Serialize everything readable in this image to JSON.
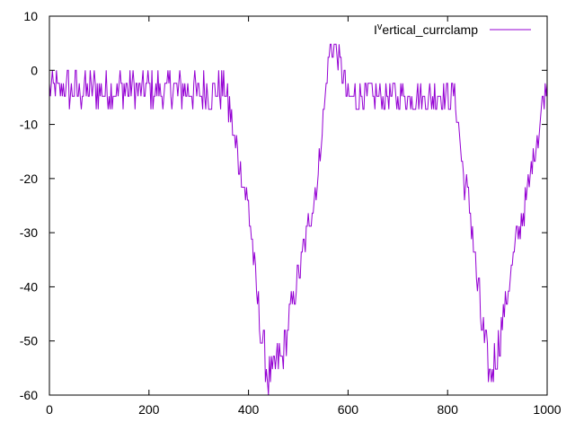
{
  "chart_data": {
    "type": "line",
    "title": "",
    "xlabel": "",
    "ylabel": "",
    "xlim": [
      0,
      1000
    ],
    "ylim": [
      -60,
      10
    ],
    "x_ticks": [
      0,
      200,
      400,
      600,
      800,
      1000
    ],
    "y_ticks": [
      10,
      0,
      -10,
      -20,
      -30,
      -40,
      -50,
      -60
    ],
    "x_tick_labels": [
      "0",
      "200",
      "400",
      "600",
      "800",
      "1000"
    ],
    "y_tick_labels": [
      "10",
      "0",
      "-10",
      "-20",
      "-30",
      "-40",
      "-50",
      "-60"
    ],
    "grid": false,
    "legend_position": "top-right",
    "series": [
      {
        "name": "I^vertical_currclamp",
        "color": "#9400d3",
        "step": 2,
        "noise_levels": [
          -7.2,
          -2.4,
          0.0,
          2.4,
          7.2
        ],
        "envelope_x": [
          0,
          240,
          355,
          370,
          400,
          420,
          440,
          470,
          500,
          540,
          550,
          565,
          580,
          600,
          700,
          815,
          825,
          850,
          870,
          885,
          900,
          930,
          965,
          1000
        ],
        "envelope_y": [
          -3.6,
          -3.6,
          -4.0,
          -12.0,
          -25.0,
          -45.0,
          -57.0,
          -52.0,
          -38.0,
          -20.0,
          -8.0,
          4.8,
          2.4,
          -4.8,
          -4.8,
          -4.8,
          -14.0,
          -30.0,
          -48.0,
          -56.0,
          -52.0,
          -36.0,
          -20.0,
          -2.0
        ],
        "noise_amplitude": [
          3.6,
          3.6,
          3.6,
          4.0,
          3.5,
          4.0,
          3.5,
          3.5,
          3.0,
          3.0,
          3.0,
          2.4,
          2.4,
          3.0,
          2.4,
          3.0,
          3.5,
          3.5,
          4.0,
          3.5,
          3.5,
          3.5,
          3.0,
          3.0
        ]
      }
    ]
  }
}
